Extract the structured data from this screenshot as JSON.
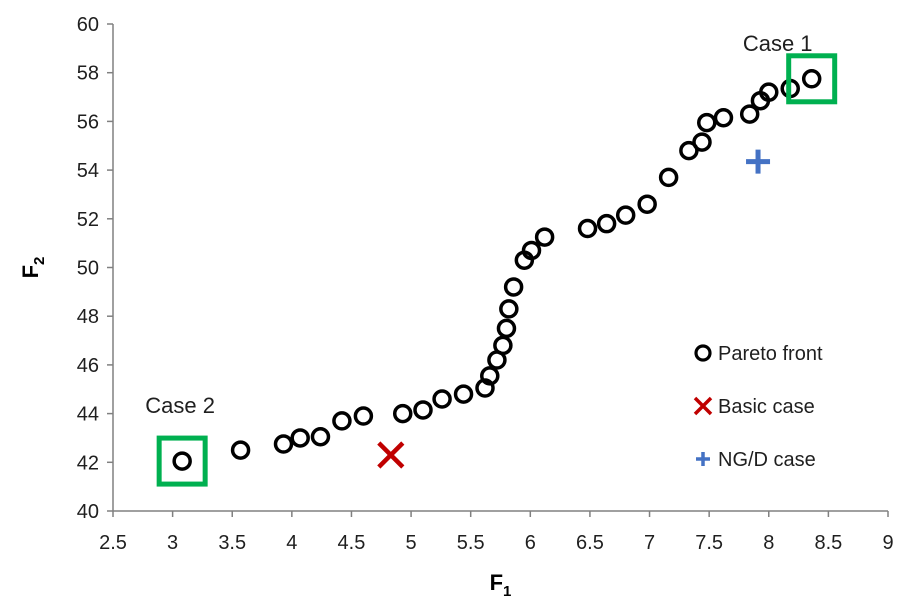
{
  "chart_data": {
    "type": "scatter",
    "title": "",
    "xlabel": "F",
    "xlabel_sub": "1",
    "ylabel": "F",
    "ylabel_sub": "2",
    "xlim": [
      2.5,
      9
    ],
    "ylim": [
      40,
      60
    ],
    "xticks": [
      "2.5",
      "3",
      "3.5",
      "4",
      "4.5",
      "5",
      "5.5",
      "6",
      "6.5",
      "7",
      "7.5",
      "8",
      "8.5",
      "9"
    ],
    "yticks": [
      "40",
      "42",
      "44",
      "46",
      "48",
      "50",
      "52",
      "54",
      "56",
      "58",
      "60"
    ],
    "grid": false,
    "legend_position": "right",
    "series": [
      {
        "name": "Pareto front",
        "marker": "open-circle",
        "color": "#000000",
        "points": [
          [
            3.08,
            42.05
          ],
          [
            3.57,
            42.5
          ],
          [
            3.93,
            42.75
          ],
          [
            4.07,
            43.0
          ],
          [
            4.24,
            43.05
          ],
          [
            4.42,
            43.7
          ],
          [
            4.6,
            43.9
          ],
          [
            4.93,
            44.0
          ],
          [
            5.1,
            44.15
          ],
          [
            5.26,
            44.6
          ],
          [
            5.44,
            44.8
          ],
          [
            5.62,
            45.05
          ],
          [
            5.66,
            45.55
          ],
          [
            5.72,
            46.2
          ],
          [
            5.77,
            46.8
          ],
          [
            5.8,
            47.5
          ],
          [
            5.82,
            48.3
          ],
          [
            5.86,
            49.2
          ],
          [
            5.95,
            50.3
          ],
          [
            6.01,
            50.7
          ],
          [
            6.12,
            51.25
          ],
          [
            6.48,
            51.6
          ],
          [
            6.64,
            51.8
          ],
          [
            6.8,
            52.15
          ],
          [
            6.98,
            52.6
          ],
          [
            7.16,
            53.7
          ],
          [
            7.33,
            54.8
          ],
          [
            7.44,
            55.15
          ],
          [
            7.48,
            55.95
          ],
          [
            7.62,
            56.15
          ],
          [
            7.84,
            56.3
          ],
          [
            7.93,
            56.85
          ],
          [
            8.0,
            57.2
          ],
          [
            8.18,
            57.35
          ],
          [
            8.36,
            57.75
          ]
        ]
      },
      {
        "name": "Basic case",
        "marker": "x",
        "color": "#c00000",
        "points": [
          [
            4.83,
            42.3
          ]
        ]
      },
      {
        "name": "NG/D case",
        "marker": "plus",
        "color": "#4472c4",
        "points": [
          [
            7.91,
            54.35
          ]
        ]
      }
    ],
    "annotations": [
      {
        "text": "Case 1",
        "x": 8.36,
        "y": 57.75
      },
      {
        "text": "Case 2",
        "x": 3.08,
        "y": 42.05
      }
    ],
    "highlight_color": "#00b050"
  }
}
